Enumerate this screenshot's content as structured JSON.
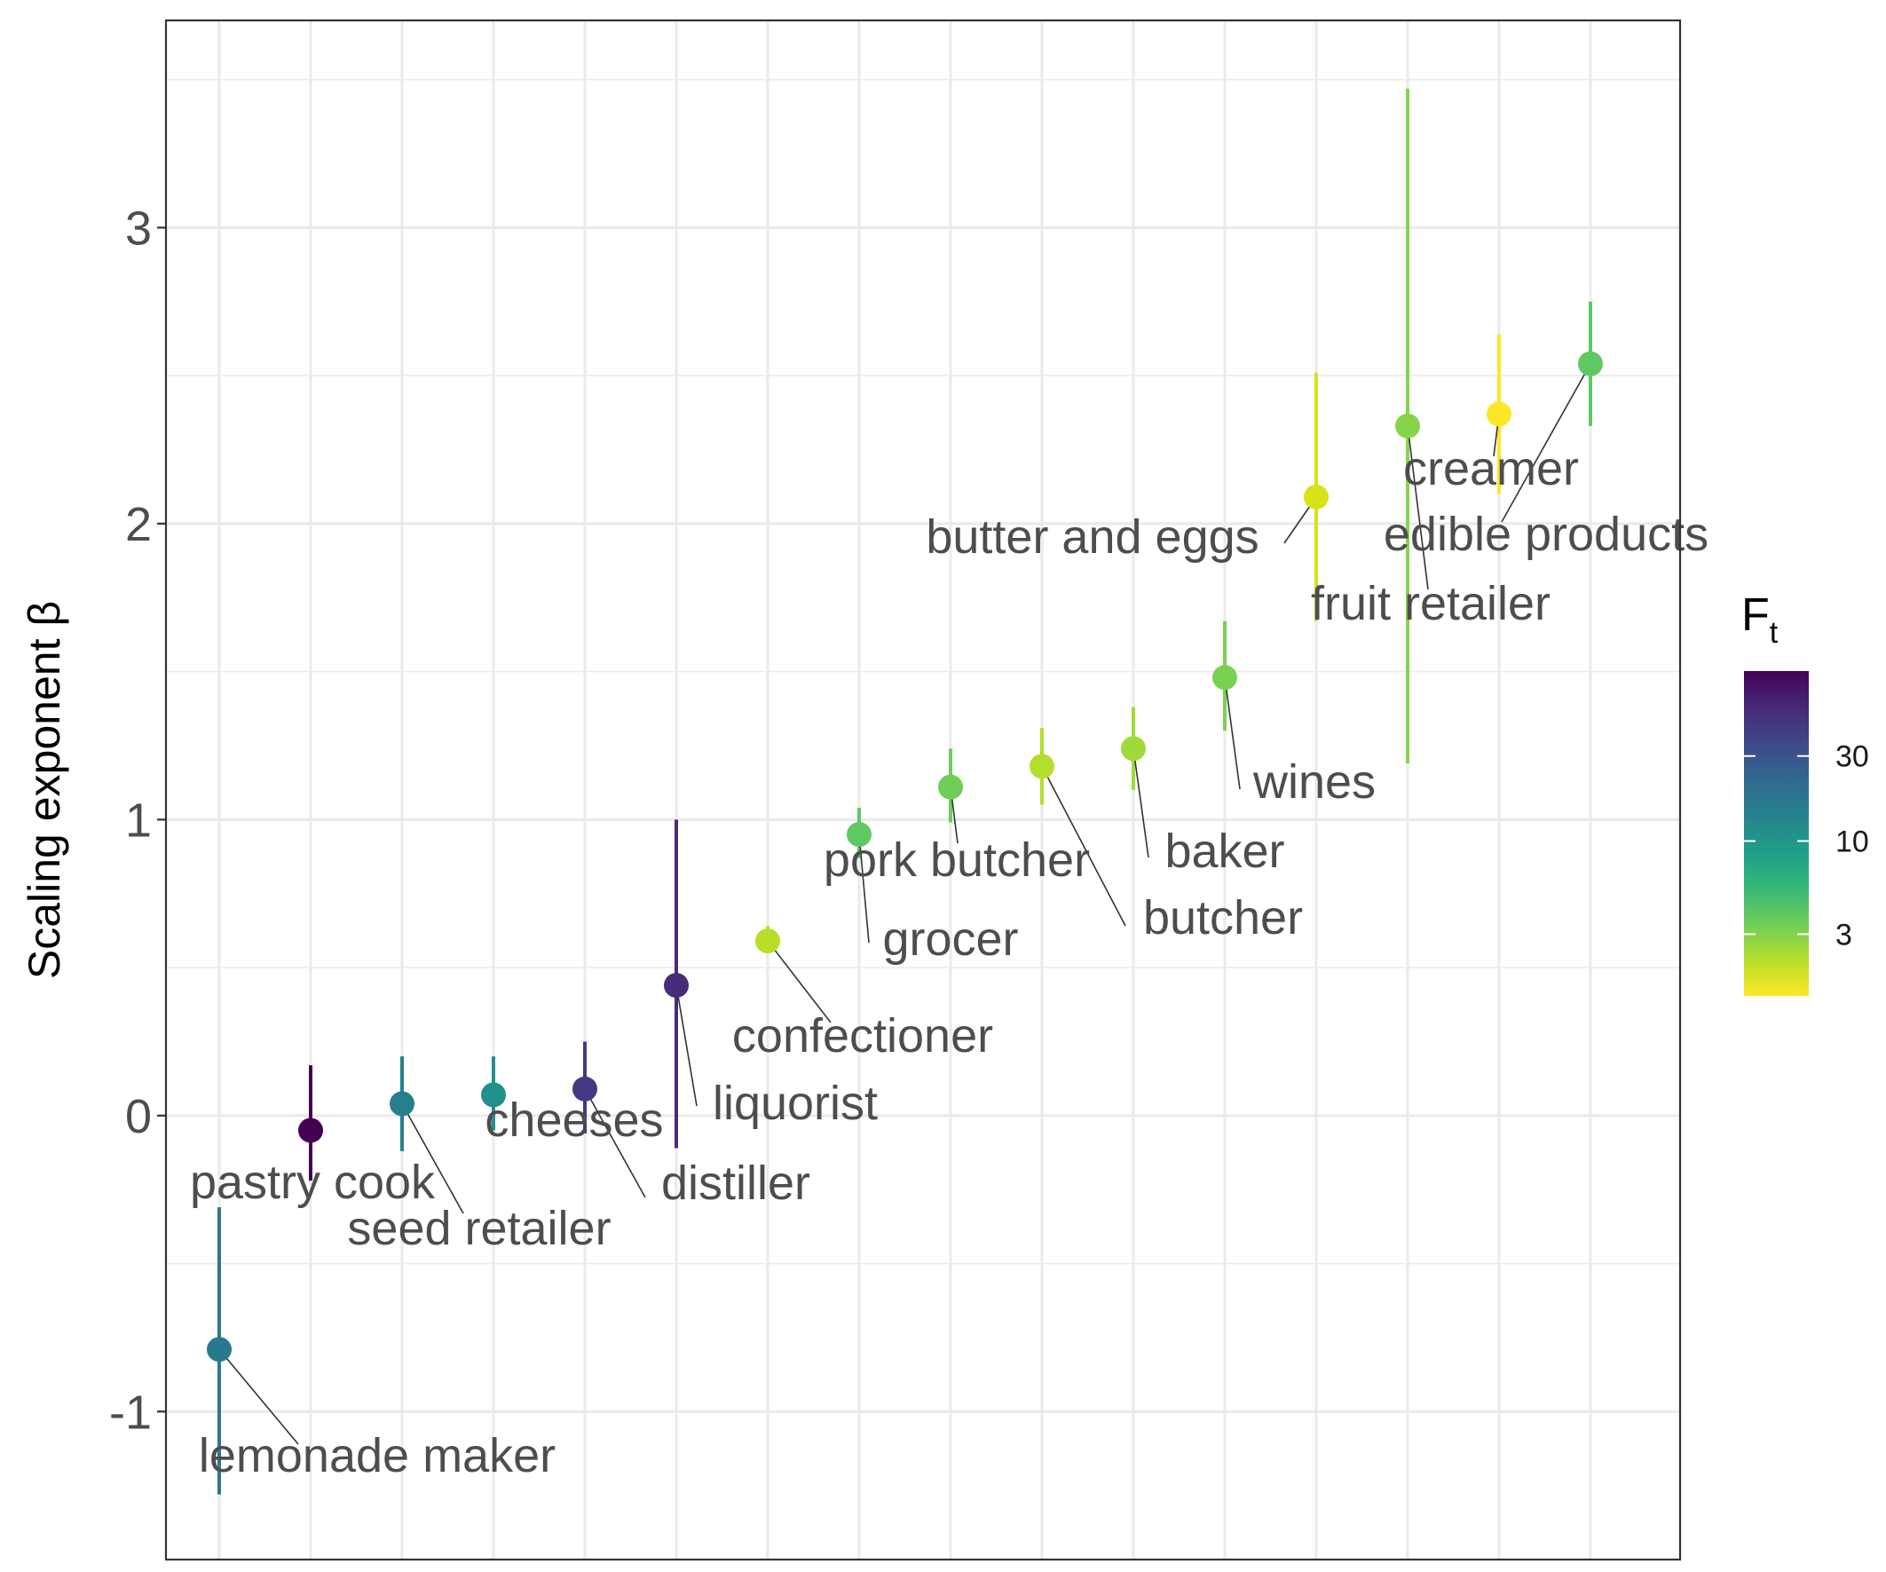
{
  "chart_data": {
    "type": "scatter",
    "ylabel": "Scaling exponent β",
    "xlabel": "",
    "ylim": [
      -1.5,
      3.7
    ],
    "yticks": [
      {
        "value": -1,
        "label": "-1"
      },
      {
        "value": 0,
        "label": "0"
      },
      {
        "value": 1,
        "label": "1"
      },
      {
        "value": 2,
        "label": "2"
      },
      {
        "value": 3,
        "label": "3"
      }
    ],
    "grid": true,
    "legend": {
      "title": "F",
      "title_subscript": "t",
      "placement": "right",
      "scale": "log",
      "range": [
        1.35,
        90
      ],
      "ticks": [
        {
          "value": 3,
          "label": "3"
        },
        {
          "value": 10,
          "label": "10"
        },
        {
          "value": 30,
          "label": "30"
        }
      ],
      "palette": [
        "#fde725",
        "#b5de2b",
        "#6ece58",
        "#35b779",
        "#1f9e89",
        "#26828e",
        "#31688e",
        "#3e4989",
        "#482878",
        "#440154"
      ]
    },
    "series": [
      {
        "label": "lemonade maker",
        "y": -0.79,
        "ymin": -1.28,
        "ymax": -0.31,
        "color": "#2a788e"
      },
      {
        "label": "pastry cook",
        "y": -0.05,
        "ymin": -0.22,
        "ymax": 0.17,
        "color": "#440154"
      },
      {
        "label": "seed retailer",
        "y": 0.04,
        "ymin": -0.12,
        "ymax": 0.2,
        "color": "#277f8e"
      },
      {
        "label": "cheeses",
        "y": 0.07,
        "ymin": -0.05,
        "ymax": 0.2,
        "color": "#21908d"
      },
      {
        "label": "distiller",
        "y": 0.09,
        "ymin": -0.06,
        "ymax": 0.25,
        "color": "#443983"
      },
      {
        "label": "liquorist",
        "y": 0.44,
        "ymin": -0.11,
        "ymax": 1.0,
        "color": "#472c7a"
      },
      {
        "label": "confectioner",
        "y": 0.59,
        "ymin": 0.55,
        "ymax": 0.64,
        "color": "#b8de29"
      },
      {
        "label": "grocer",
        "y": 0.95,
        "ymin": 0.87,
        "ymax": 1.04,
        "color": "#5ec962"
      },
      {
        "label": "pork butcher",
        "y": 1.11,
        "ymin": 0.99,
        "ymax": 1.24,
        "color": "#6ece58"
      },
      {
        "label": "butcher",
        "y": 1.18,
        "ymin": 1.05,
        "ymax": 1.31,
        "color": "#b5de2b"
      },
      {
        "label": "baker",
        "y": 1.24,
        "ymin": 1.1,
        "ymax": 1.38,
        "color": "#a0da39"
      },
      {
        "label": "wines",
        "y": 1.48,
        "ymin": 1.3,
        "ymax": 1.67,
        "color": "#7ad151"
      },
      {
        "label": "butter and eggs",
        "y": 2.09,
        "ymin": 1.67,
        "ymax": 2.51,
        "color": "#d8e219"
      },
      {
        "label": "fruit retailer",
        "y": 2.33,
        "ymin": 1.19,
        "ymax": 3.47,
        "color": "#86d549"
      },
      {
        "label": "creamer",
        "y": 2.37,
        "ymin": 2.1,
        "ymax": 2.64,
        "color": "#fde725"
      },
      {
        "label": "edible products",
        "y": 2.54,
        "ymin": 2.33,
        "ymax": 2.75,
        "color": "#5ec962"
      }
    ]
  }
}
